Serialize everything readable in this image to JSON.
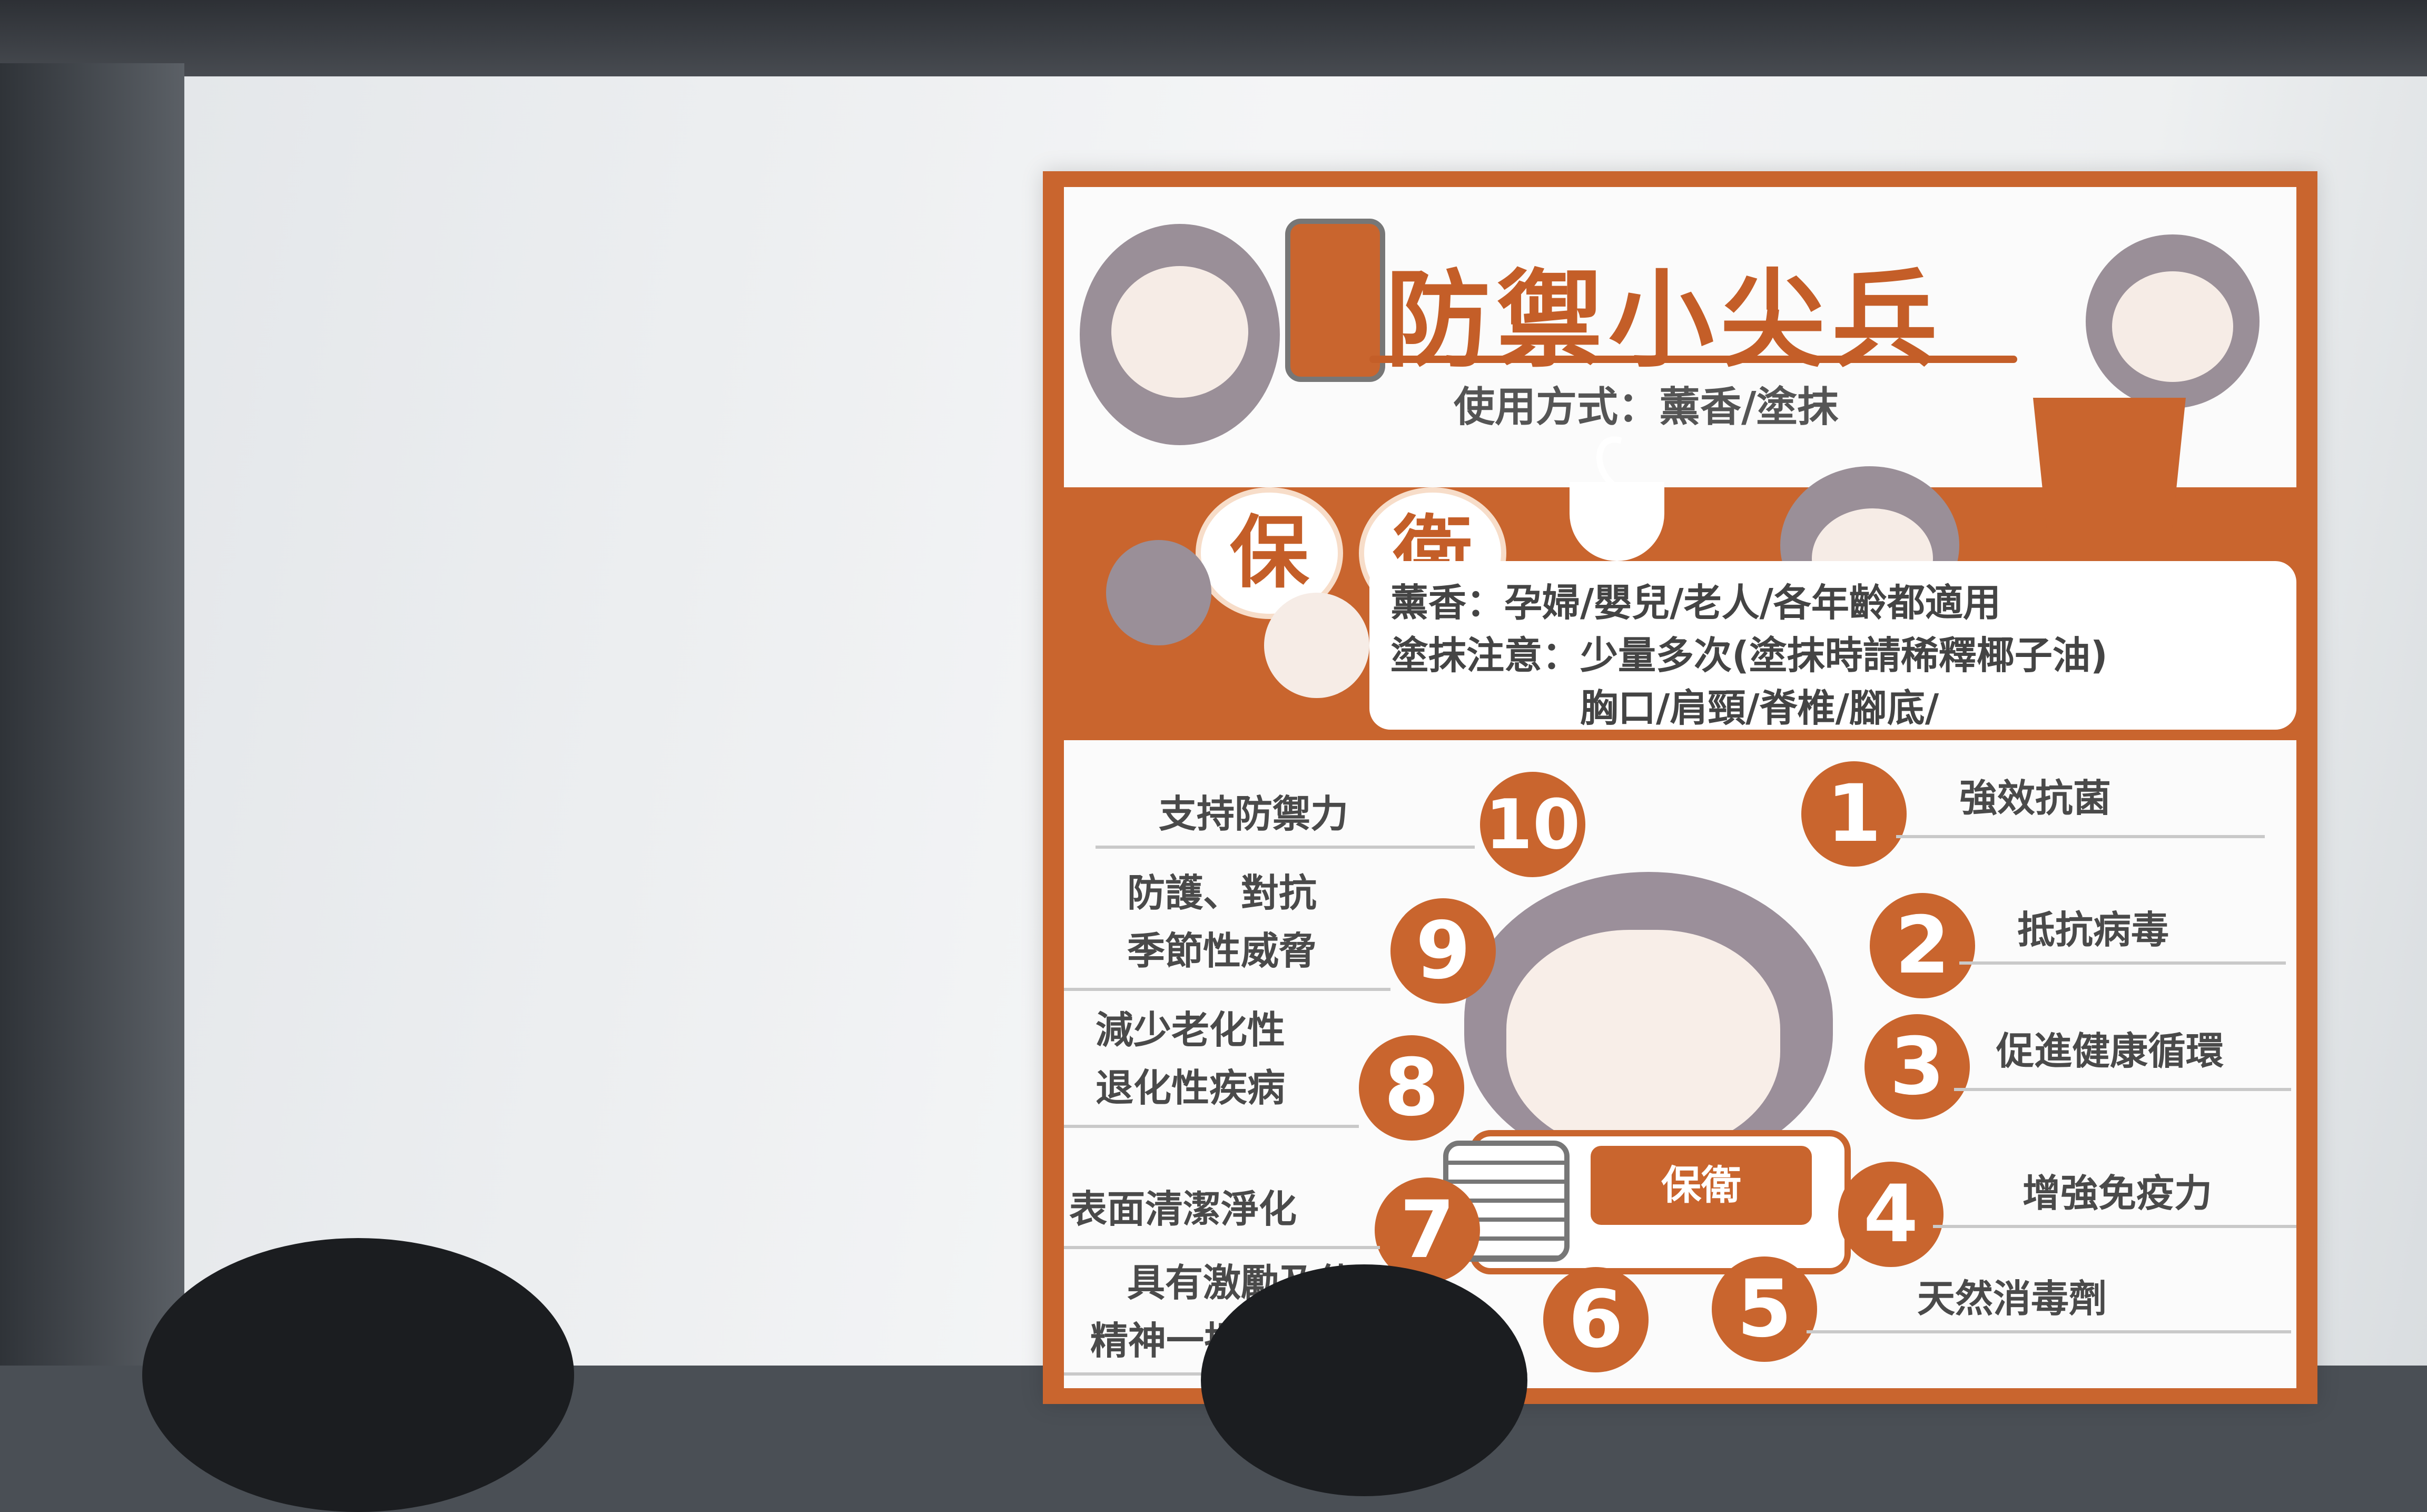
{
  "slide": {
    "title": "防禦小尖兵",
    "usage": "使用方式：薰香/塗抹",
    "badges": [
      "保",
      "衛"
    ],
    "info": [
      "薰香：孕婦/嬰兒/老人/各年齡都適用",
      "塗抹注意：少量多次(塗抹時請稀釋椰子油)",
      "胸口/肩頸/脊椎/腳底/"
    ],
    "product_label": "保衛",
    "features_right": [
      {
        "num": "1",
        "text": "強效抗菌"
      },
      {
        "num": "2",
        "text": "抵抗病毒"
      },
      {
        "num": "3",
        "text": "促進健康循環"
      },
      {
        "num": "4",
        "text": "增強免疫力"
      },
      {
        "num": "5",
        "text": "天然消毒劑"
      }
    ],
    "features_left": [
      {
        "num": "10",
        "text": "支持防禦力"
      },
      {
        "num": "9",
        "line1": "防護、對抗",
        "line2": "季節性威脅"
      },
      {
        "num": "8",
        "line1": "減少老化性",
        "line2": "退化性疾病"
      },
      {
        "num": "7",
        "text": "表面清潔淨化"
      },
      {
        "num": "6",
        "line1": "具有激勵及使",
        "line2": "精神一振的香氛"
      }
    ]
  },
  "colors": {
    "accent": "#c9652e",
    "panel": "#fbfbfb",
    "screen": "#f1f2f3"
  }
}
